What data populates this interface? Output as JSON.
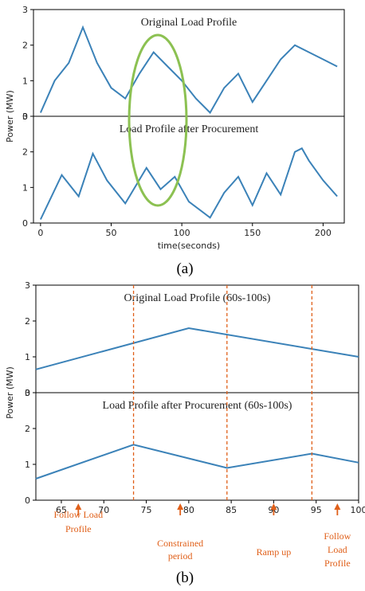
{
  "chart_data": [
    {
      "type": "line",
      "panel": "a",
      "caption": "(a)",
      "xlabel": "time(seconds)",
      "ylabel": "Power (MW)",
      "xlim": [
        -5,
        215
      ],
      "xticks": [
        0,
        50,
        100,
        150,
        200
      ],
      "grid": false,
      "subplots": [
        {
          "title": "Original Load Profile",
          "ylim": [
            0,
            3
          ],
          "yticks": [
            0,
            1,
            2,
            3
          ],
          "ytick_labels": [
            "0",
            "1",
            "2",
            "3"
          ],
          "x": [
            0,
            10,
            20,
            30,
            40,
            50,
            60,
            70,
            80,
            90,
            100,
            110,
            120,
            130,
            140,
            150,
            160,
            170,
            180,
            190,
            200,
            210
          ],
          "y": [
            0.1,
            1.0,
            1.5,
            2.5,
            1.5,
            0.8,
            0.5,
            1.2,
            1.8,
            1.4,
            1.0,
            0.5,
            0.1,
            0.8,
            1.2,
            0.4,
            1.0,
            1.6,
            2.0,
            1.8,
            1.6,
            1.4
          ]
        },
        {
          "title": "Load Profile after Procurement",
          "ylim": [
            0,
            3
          ],
          "yticks": [
            0,
            1,
            2,
            3
          ],
          "ytick_labels": [
            "0",
            "1",
            "2",
            "3"
          ],
          "x": [
            0,
            15,
            27,
            37,
            47,
            60,
            75,
            85,
            95,
            105,
            120,
            130,
            140,
            150,
            160,
            170,
            180,
            185,
            190,
            200,
            210
          ],
          "y": [
            0.1,
            1.35,
            0.75,
            1.95,
            1.2,
            0.55,
            1.55,
            0.95,
            1.3,
            0.6,
            0.15,
            0.85,
            1.3,
            0.5,
            1.4,
            0.8,
            2.0,
            2.1,
            1.75,
            1.2,
            0.75
          ]
        }
      ]
    },
    {
      "type": "line",
      "panel": "b",
      "caption": "(b)",
      "xlabel": "",
      "ylabel": "Power (MW)",
      "xlim": [
        62,
        100
      ],
      "xticks": [
        65,
        70,
        75,
        80,
        85,
        90,
        95,
        100
      ],
      "grid": false,
      "subplots": [
        {
          "title": "Original Load Profile (60s-100s)",
          "ylim": [
            0,
            3
          ],
          "yticks": [
            0,
            1,
            2,
            3
          ],
          "ytick_labels": [
            "0",
            "1",
            "2",
            "3"
          ],
          "x": [
            62,
            80,
            100
          ],
          "y": [
            0.65,
            1.8,
            1.0
          ]
        },
        {
          "title": "Load Profile after Procurement (60s-100s)",
          "ylim": [
            0,
            3
          ],
          "yticks": [
            0,
            1,
            2,
            3
          ],
          "ytick_labels": [
            "0",
            "1",
            "2",
            "3"
          ],
          "x": [
            62,
            73.5,
            84.5,
            94.5,
            100
          ],
          "y": [
            0.6,
            1.55,
            0.9,
            1.3,
            1.05
          ]
        }
      ],
      "vlines": [
        73.5,
        84.5,
        94.5
      ],
      "annotations": [
        {
          "lines": [
            "Follow Load",
            "Profile"
          ],
          "x": 67
        },
        {
          "lines": [
            "Constrained",
            "period"
          ],
          "x": 79
        },
        {
          "lines": [
            "Ramp up"
          ],
          "x": 90
        },
        {
          "lines": [
            "Follow",
            "Load",
            "Profile"
          ],
          "x": 97.5
        }
      ]
    }
  ]
}
